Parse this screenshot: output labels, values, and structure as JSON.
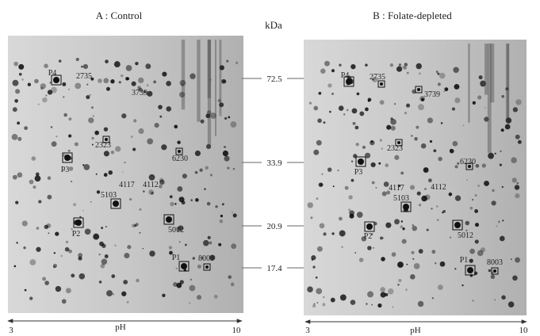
{
  "marker_title": "kDa",
  "markers": [
    72.5,
    33.9,
    20.9,
    17.4
  ],
  "panels": [
    {
      "title": "A : Control",
      "spots": [
        "P4",
        "2735",
        "3739",
        "2323",
        "P3",
        "6230",
        "4117",
        "4112",
        "5103",
        "P2",
        "5012",
        "P1",
        "8003"
      ],
      "axis": {
        "start": 3,
        "end": 10,
        "label": "pH"
      }
    },
    {
      "title": "B : Folate-depleted",
      "spots": [
        "P4",
        "2735",
        "3739",
        "2323",
        "P3",
        "6230",
        "4117",
        "4112",
        "5103",
        "P2",
        "5012",
        "P1",
        "8003"
      ],
      "axis": {
        "start": 3,
        "end": 10,
        "label": "pH"
      }
    }
  ]
}
